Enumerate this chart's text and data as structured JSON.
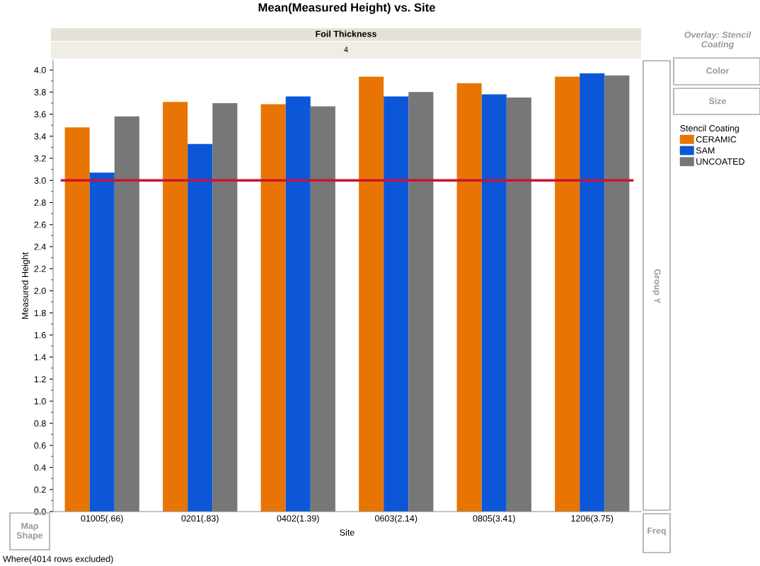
{
  "chart_data": {
    "type": "bar",
    "title": "Mean(Measured Height) vs. Site",
    "subtitle": "Foil Thickness",
    "xlabel": "Site",
    "ylabel": "Measured Height",
    "legend_title": "Stencil Coating",
    "legend": "right",
    "categories": [
      "01005(.66)",
      "0201(.83)",
      "0402(1.39)",
      "0603(2.14)",
      "0805(3.41)",
      "1206(3.75)"
    ],
    "series": [
      {
        "name": "CERAMIC",
        "color": "#e87503",
        "values": [
          3.48,
          3.71,
          3.69,
          3.94,
          3.88,
          3.94
        ]
      },
      {
        "name": "SAM",
        "color": "#0b57d8",
        "values": [
          3.07,
          3.33,
          3.76,
          3.76,
          3.78,
          3.97
        ]
      },
      {
        "name": "UNCOATED",
        "color": "#777777",
        "values": [
          3.58,
          3.7,
          3.67,
          3.8,
          3.75,
          3.95
        ]
      }
    ],
    "ylim": [
      0,
      4.09
    ],
    "yticks": [
      {
        "value": 0,
        "label": "0.0"
      },
      0.2,
      0.4,
      0.6,
      0.8,
      {
        "value": 1,
        "label": "1.0"
      },
      1.2,
      1.4,
      1.6,
      1.8,
      {
        "value": 2,
        "label": "2.0"
      },
      2.2,
      2.4,
      2.6,
      2.8,
      {
        "value": 3,
        "label": "3.0"
      },
      3.2,
      3.4,
      3.6,
      3.8,
      {
        "value": 4,
        "label": "4.0"
      }
    ],
    "grid": false,
    "ref_lines": [
      {
        "axis": "y",
        "value": 3.0,
        "color": "#cc1133"
      }
    ],
    "annotations": [
      "4",
      "Overlay: Stencil Coating",
      "Color",
      "Size",
      "Group Y",
      "Map Shape",
      "Freq",
      "Where(4014 rows excluded)"
    ]
  }
}
